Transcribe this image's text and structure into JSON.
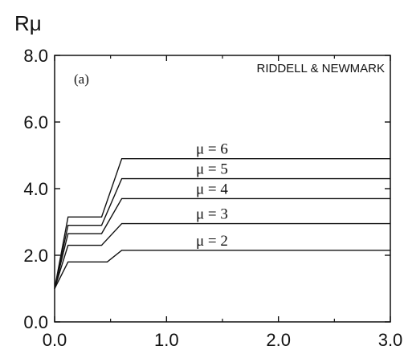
{
  "chart_data": {
    "type": "line",
    "title": "",
    "ylabel": "Rμ",
    "xlabel": "",
    "panel_label": "(a)",
    "source_label": "RIDDELL & NEWMARK",
    "xlim": [
      0.0,
      3.0
    ],
    "ylim": [
      0.0,
      8.0
    ],
    "x_ticks": [
      "0.0",
      "1.0",
      "2.0",
      "3.0"
    ],
    "y_ticks": [
      "0.0",
      "2.0",
      "4.0",
      "6.0",
      "8.0"
    ],
    "x_tick_values": [
      0.0,
      1.0,
      2.0,
      3.0
    ],
    "y_tick_values": [
      0.0,
      2.0,
      4.0,
      6.0,
      8.0
    ],
    "grid": false,
    "series": [
      {
        "name": "μ = 2",
        "x": [
          0.0,
          0.12,
          0.42,
          0.47,
          0.6,
          3.0
        ],
        "y": [
          1.0,
          1.8,
          1.8,
          1.8,
          2.15,
          2.15
        ]
      },
      {
        "name": "μ = 3",
        "x": [
          0.0,
          0.12,
          0.42,
          0.6,
          3.0
        ],
        "y": [
          1.0,
          2.3,
          2.3,
          2.95,
          2.95
        ]
      },
      {
        "name": "μ = 4",
        "x": [
          0.0,
          0.12,
          0.42,
          0.6,
          3.0
        ],
        "y": [
          1.0,
          2.65,
          2.65,
          3.7,
          3.7
        ]
      },
      {
        "name": "μ = 5",
        "x": [
          0.0,
          0.12,
          0.42,
          0.6,
          3.0
        ],
        "y": [
          1.0,
          2.9,
          2.9,
          4.3,
          4.3
        ]
      },
      {
        "name": "μ = 6",
        "x": [
          0.0,
          0.12,
          0.42,
          0.6,
          3.0
        ],
        "y": [
          1.0,
          3.15,
          3.15,
          4.9,
          4.9
        ]
      }
    ],
    "line_color": "#111111"
  }
}
